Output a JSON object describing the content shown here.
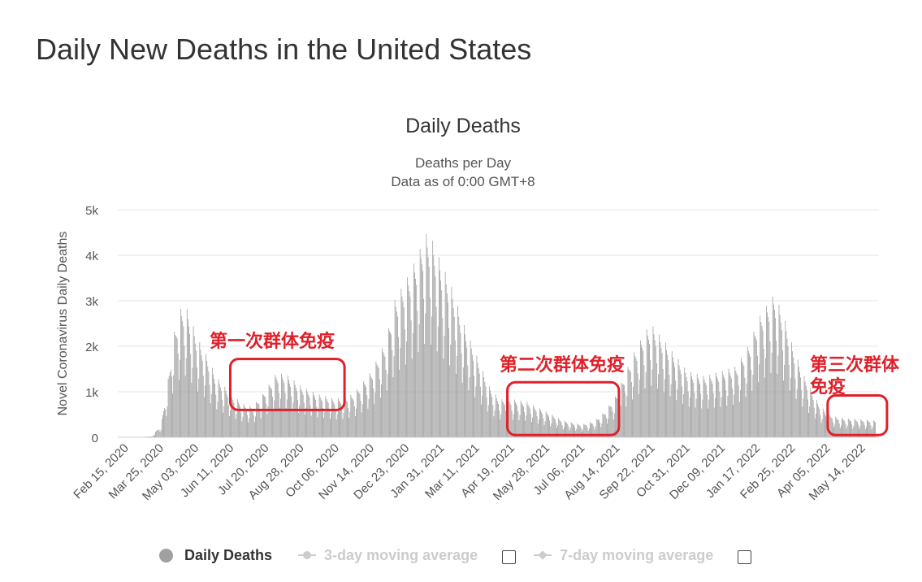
{
  "page": {
    "title": "Daily New Deaths in the United States"
  },
  "chart_data": {
    "type": "bar",
    "title": "Daily Deaths",
    "subtitle": [
      "Deaths per Day",
      "Data as of 0:00 GMT+8"
    ],
    "ylabel": "Novel Coronavirus Daily Deaths",
    "ylim": [
      0,
      5000
    ],
    "yticks": [
      {
        "value": 0,
        "label": "0"
      },
      {
        "value": 1000,
        "label": "1k"
      },
      {
        "value": 2000,
        "label": "2k"
      },
      {
        "value": 3000,
        "label": "3k"
      },
      {
        "value": 4000,
        "label": "4k"
      },
      {
        "value": 5000,
        "label": "5k"
      }
    ],
    "xticks": [
      {
        "date": "2020-02-15",
        "label": "Feb 15, 2020"
      },
      {
        "date": "2020-03-25",
        "label": "Mar 25, 2020"
      },
      {
        "date": "2020-05-03",
        "label": "May 03, 2020"
      },
      {
        "date": "2020-06-11",
        "label": "Jun 11, 2020"
      },
      {
        "date": "2020-07-20",
        "label": "Jul 20, 2020"
      },
      {
        "date": "2020-08-28",
        "label": "Aug 28, 2020"
      },
      {
        "date": "2020-10-06",
        "label": "Oct 06, 2020"
      },
      {
        "date": "2020-11-14",
        "label": "Nov 14, 2020"
      },
      {
        "date": "2020-12-23",
        "label": "Dec 23, 2020"
      },
      {
        "date": "2021-01-31",
        "label": "Jan 31, 2021"
      },
      {
        "date": "2021-03-11",
        "label": "Mar 11, 2021"
      },
      {
        "date": "2021-04-19",
        "label": "Apr 19, 2021"
      },
      {
        "date": "2021-05-28",
        "label": "May 28, 2021"
      },
      {
        "date": "2021-07-06",
        "label": "Jul 06, 2021"
      },
      {
        "date": "2021-08-14",
        "label": "Aug 14, 2021"
      },
      {
        "date": "2021-09-22",
        "label": "Sep 22, 2021"
      },
      {
        "date": "2021-10-31",
        "label": "Oct 31, 2021"
      },
      {
        "date": "2021-12-09",
        "label": "Dec 09, 2021"
      },
      {
        "date": "2022-01-17",
        "label": "Jan 17, 2022"
      },
      {
        "date": "2022-02-25",
        "label": "Feb 25, 2022"
      },
      {
        "date": "2022-04-05",
        "label": "Apr 05, 2022"
      },
      {
        "date": "2022-05-14",
        "label": "May 14, 2022"
      }
    ],
    "series": [
      {
        "name": "Daily Deaths",
        "color": "#a0a0a0",
        "points": [
          {
            "date": "2020-02-15",
            "value": 0
          },
          {
            "date": "2020-03-01",
            "value": 5
          },
          {
            "date": "2020-03-15",
            "value": 20
          },
          {
            "date": "2020-03-25",
            "value": 250
          },
          {
            "date": "2020-04-01",
            "value": 1000
          },
          {
            "date": "2020-04-08",
            "value": 2000
          },
          {
            "date": "2020-04-15",
            "value": 2500
          },
          {
            "date": "2020-04-21",
            "value": 2600
          },
          {
            "date": "2020-04-28",
            "value": 2300
          },
          {
            "date": "2020-05-03",
            "value": 2000
          },
          {
            "date": "2020-05-15",
            "value": 1600
          },
          {
            "date": "2020-05-25",
            "value": 1200
          },
          {
            "date": "2020-06-11",
            "value": 850
          },
          {
            "date": "2020-06-25",
            "value": 650
          },
          {
            "date": "2020-07-05",
            "value": 600
          },
          {
            "date": "2020-07-20",
            "value": 950
          },
          {
            "date": "2020-07-31",
            "value": 1250
          },
          {
            "date": "2020-08-10",
            "value": 1250
          },
          {
            "date": "2020-08-28",
            "value": 1000
          },
          {
            "date": "2020-09-15",
            "value": 850
          },
          {
            "date": "2020-10-06",
            "value": 750
          },
          {
            "date": "2020-10-25",
            "value": 850
          },
          {
            "date": "2020-11-14",
            "value": 1300
          },
          {
            "date": "2020-11-30",
            "value": 1900
          },
          {
            "date": "2020-12-10",
            "value": 2700
          },
          {
            "date": "2020-12-23",
            "value": 3100
          },
          {
            "date": "2021-01-05",
            "value": 3600
          },
          {
            "date": "2021-01-13",
            "value": 4000
          },
          {
            "date": "2021-01-20",
            "value": 3900
          },
          {
            "date": "2021-01-31",
            "value": 3400
          },
          {
            "date": "2021-02-10",
            "value": 3000
          },
          {
            "date": "2021-02-25",
            "value": 2200
          },
          {
            "date": "2021-03-11",
            "value": 1600
          },
          {
            "date": "2021-03-25",
            "value": 1000
          },
          {
            "date": "2021-04-05",
            "value": 750
          },
          {
            "date": "2021-04-19",
            "value": 750
          },
          {
            "date": "2021-05-05",
            "value": 700
          },
          {
            "date": "2021-05-28",
            "value": 500
          },
          {
            "date": "2021-06-15",
            "value": 330
          },
          {
            "date": "2021-07-06",
            "value": 250
          },
          {
            "date": "2021-07-20",
            "value": 320
          },
          {
            "date": "2021-07-31",
            "value": 500
          },
          {
            "date": "2021-08-14",
            "value": 850
          },
          {
            "date": "2021-08-31",
            "value": 1600
          },
          {
            "date": "2021-09-15",
            "value": 2100
          },
          {
            "date": "2021-09-22",
            "value": 2200
          },
          {
            "date": "2021-10-05",
            "value": 1900
          },
          {
            "date": "2021-10-31",
            "value": 1300
          },
          {
            "date": "2021-11-20",
            "value": 1200
          },
          {
            "date": "2021-12-09",
            "value": 1300
          },
          {
            "date": "2021-12-25",
            "value": 1400
          },
          {
            "date": "2022-01-10",
            "value": 1900
          },
          {
            "date": "2022-01-17",
            "value": 2300
          },
          {
            "date": "2022-01-31",
            "value": 2700
          },
          {
            "date": "2022-02-05",
            "value": 2800
          },
          {
            "date": "2022-02-15",
            "value": 2400
          },
          {
            "date": "2022-02-25",
            "value": 1800
          },
          {
            "date": "2022-03-10",
            "value": 1200
          },
          {
            "date": "2022-03-25",
            "value": 700
          },
          {
            "date": "2022-04-05",
            "value": 450
          },
          {
            "date": "2022-04-20",
            "value": 380
          },
          {
            "date": "2022-05-14",
            "value": 350
          },
          {
            "date": "2022-05-28",
            "value": 330
          }
        ]
      }
    ],
    "legend": {
      "items": [
        {
          "name": "Daily Deaths",
          "active": true
        },
        {
          "name": "3-day moving average",
          "active": false
        },
        {
          "name": "7-day moving average",
          "active": false
        }
      ]
    },
    "annotations": [
      {
        "text": "第一次群体免疫",
        "start": "2020-06-10",
        "end": "2020-10-15",
        "ymin": 600,
        "ymax": 1720
      },
      {
        "text": "第二次群体免疫",
        "start": "2021-04-14",
        "end": "2021-08-16",
        "ymin": 50,
        "ymax": 1210
      },
      {
        "text": "第三次群体免疫",
        "start": "2022-04-05",
        "end": "2022-06-10",
        "ymin": 50,
        "ymax": 920
      }
    ],
    "annotation_color": "#e0202a",
    "grid": true
  }
}
